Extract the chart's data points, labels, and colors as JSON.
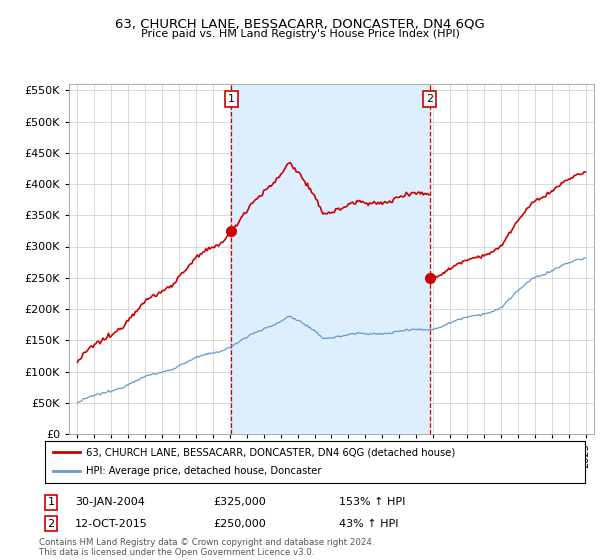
{
  "title": "63, CHURCH LANE, BESSACARR, DONCASTER, DN4 6QG",
  "subtitle": "Price paid vs. HM Land Registry's House Price Index (HPI)",
  "legend_line1": "63, CHURCH LANE, BESSACARR, DONCASTER, DN4 6QG (detached house)",
  "legend_line2": "HPI: Average price, detached house, Doncaster",
  "annotation1_date": "30-JAN-2004",
  "annotation1_price": "£325,000",
  "annotation1_hpi": "153% ↑ HPI",
  "annotation2_date": "12-OCT-2015",
  "annotation2_price": "£250,000",
  "annotation2_hpi": "43% ↑ HPI",
  "footnote": "Contains HM Land Registry data © Crown copyright and database right 2024.\nThis data is licensed under the Open Government Licence v3.0.",
  "hpi_color": "#6699cc",
  "property_color": "#cc0000",
  "vline_color": "#cc0000",
  "fill_color": "#ddeeff",
  "ylim_min": 0,
  "ylim_max": 560000,
  "yticks": [
    0,
    50000,
    100000,
    150000,
    200000,
    250000,
    300000,
    350000,
    400000,
    450000,
    500000,
    550000
  ],
  "xlim_min": 1994.5,
  "xlim_max": 2025.5,
  "year_start": 1995,
  "year_end": 2025,
  "sale1_year": 2004.08,
  "sale1_price": 325000,
  "sale2_year": 2015.79,
  "sale2_price": 250000
}
